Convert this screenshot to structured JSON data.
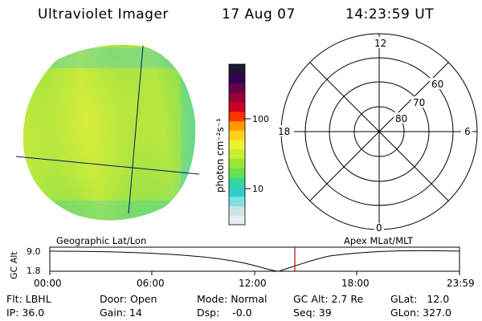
{
  "header": {
    "instrument": "Ultraviolet Imager",
    "date": "17 Aug 07",
    "time": "14:23:59 UT"
  },
  "colorbar": {
    "unit_label": "photon cm⁻²s⁻¹",
    "tick_100": "100",
    "tick_10": "10",
    "colors": [
      "#e8f0f0",
      "#c8e6e6",
      "#7fe0e0",
      "#33cccc",
      "#33d6a0",
      "#66e04c",
      "#99e633",
      "#c8ee33",
      "#eef033",
      "#ffd11a",
      "#ff9900",
      "#ff3300",
      "#cc0022",
      "#990033",
      "#66004d",
      "#330055",
      "#1a1a33"
    ]
  },
  "polar": {
    "label_12": "12",
    "label_6": "6",
    "label_18": "18",
    "label_0": "0",
    "label_60": "60",
    "label_70": "70",
    "label_80": "80"
  },
  "strip": {
    "left_title": "Geographic Lat/Lon",
    "right_title": "Apex MLat/MLT",
    "ylabel": "GC Alt",
    "ytick_top": "9.0",
    "ytick_bottom": "1.8",
    "xticks": [
      "00:00",
      "06:00",
      "12:00",
      "18:00",
      "23:59"
    ],
    "marker_color": "#cc0000"
  },
  "info": {
    "flt": "Flt: LBHL",
    "ip": "IP: 36.0",
    "door": "Door: Open",
    "gain": "Gain: 14",
    "mode": "Mode: Normal",
    "dsp": "Dsp:    -0.0",
    "gcalt": "GC Alt: 2.7 Re",
    "seq": "Seq: 39",
    "glat": "GLat:   12.0",
    "glon": "GLon: 327.0"
  }
}
